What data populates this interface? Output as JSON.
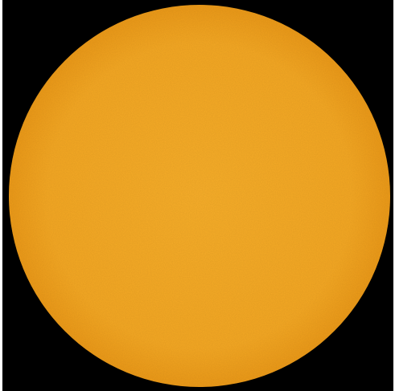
{
  "image": {
    "subject": "solar-disk",
    "colors": {
      "background": "#000000",
      "border": "#ffffff",
      "disk_center": "#f8ae29",
      "disk_mid": "#f5a823",
      "disk_limb": "#ec9a18"
    }
  }
}
